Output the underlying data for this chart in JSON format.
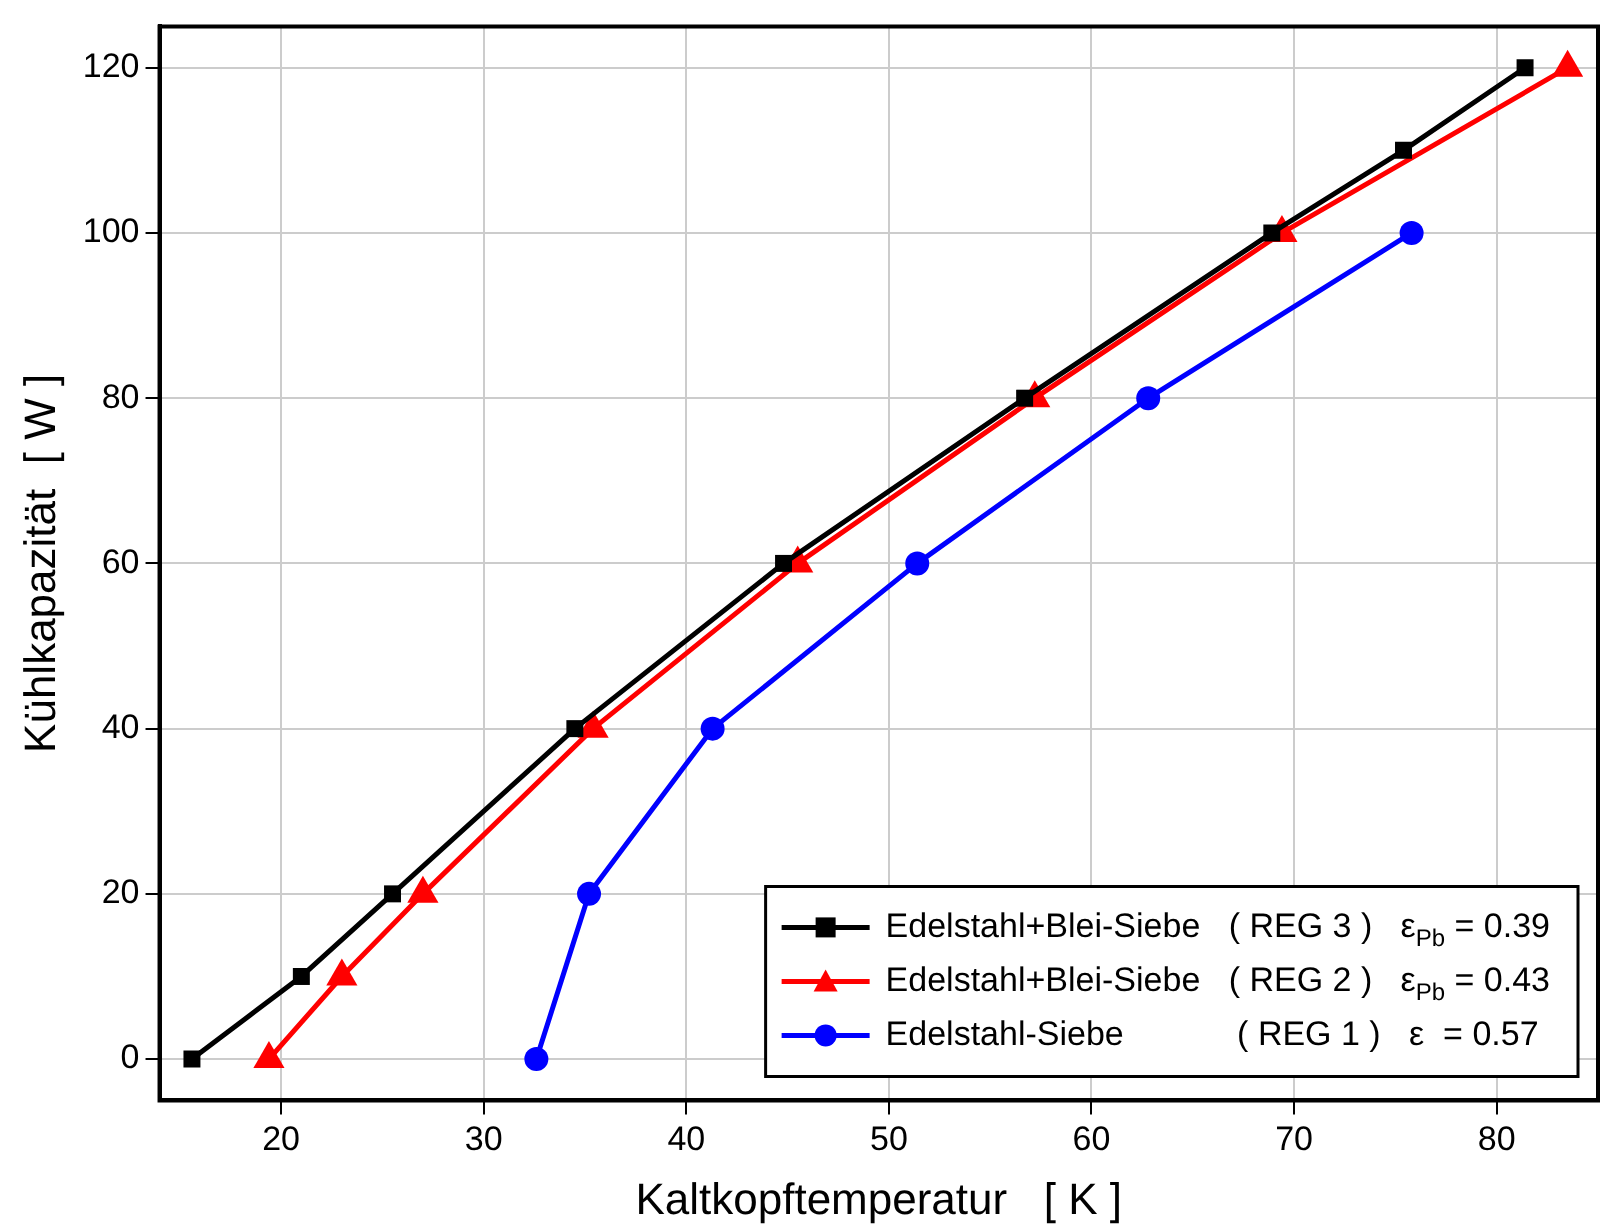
{
  "chart_data": {
    "type": "line",
    "xlabel": "Kaltkopftemperatur   [ K ]",
    "ylabel": "Kühlkapazität  [ W ]",
    "xlim": [
      14,
      85
    ],
    "xticks": [
      20,
      30,
      40,
      50,
      60,
      70,
      80
    ],
    "ylim": [
      -5,
      125
    ],
    "yticks": [
      0,
      20,
      40,
      60,
      80,
      100,
      120
    ],
    "grid": true,
    "legend": "bottom right",
    "line_style": "solid",
    "series": [
      {
        "name": "Edelstahl+Blei-Siebe   ( REG 3 )   ε$_{Pb}$ = 0.39",
        "color": "#000000",
        "marker": "square",
        "x": [
          15.6,
          21,
          25.5,
          34.5,
          44.8,
          56.7,
          68.9,
          75.4,
          81.4
        ],
        "values": [
          0,
          10,
          20,
          40,
          60,
          80,
          100,
          110,
          120
        ]
      },
      {
        "name": "Edelstahl+Blei-Siebe   ( REG 2 )   ε$_{Pb}$ = 0.43",
        "color": "#ff0000",
        "marker": "triangle",
        "x": [
          19.4,
          23,
          27,
          35.4,
          45.5,
          57.2,
          69.4,
          83.5
        ],
        "values": [
          0,
          10,
          20,
          40,
          60,
          80,
          100,
          120
        ]
      },
      {
        "name": "Edelstahl-Siebe            ( REG 1 )   ε  = 0.57",
        "color": "#0000ff",
        "marker": "circle",
        "x": [
          32.6,
          35.2,
          41.3,
          51.4,
          62.8,
          75.8
        ],
        "values": [
          0,
          20,
          40,
          60,
          80,
          100
        ]
      }
    ]
  }
}
